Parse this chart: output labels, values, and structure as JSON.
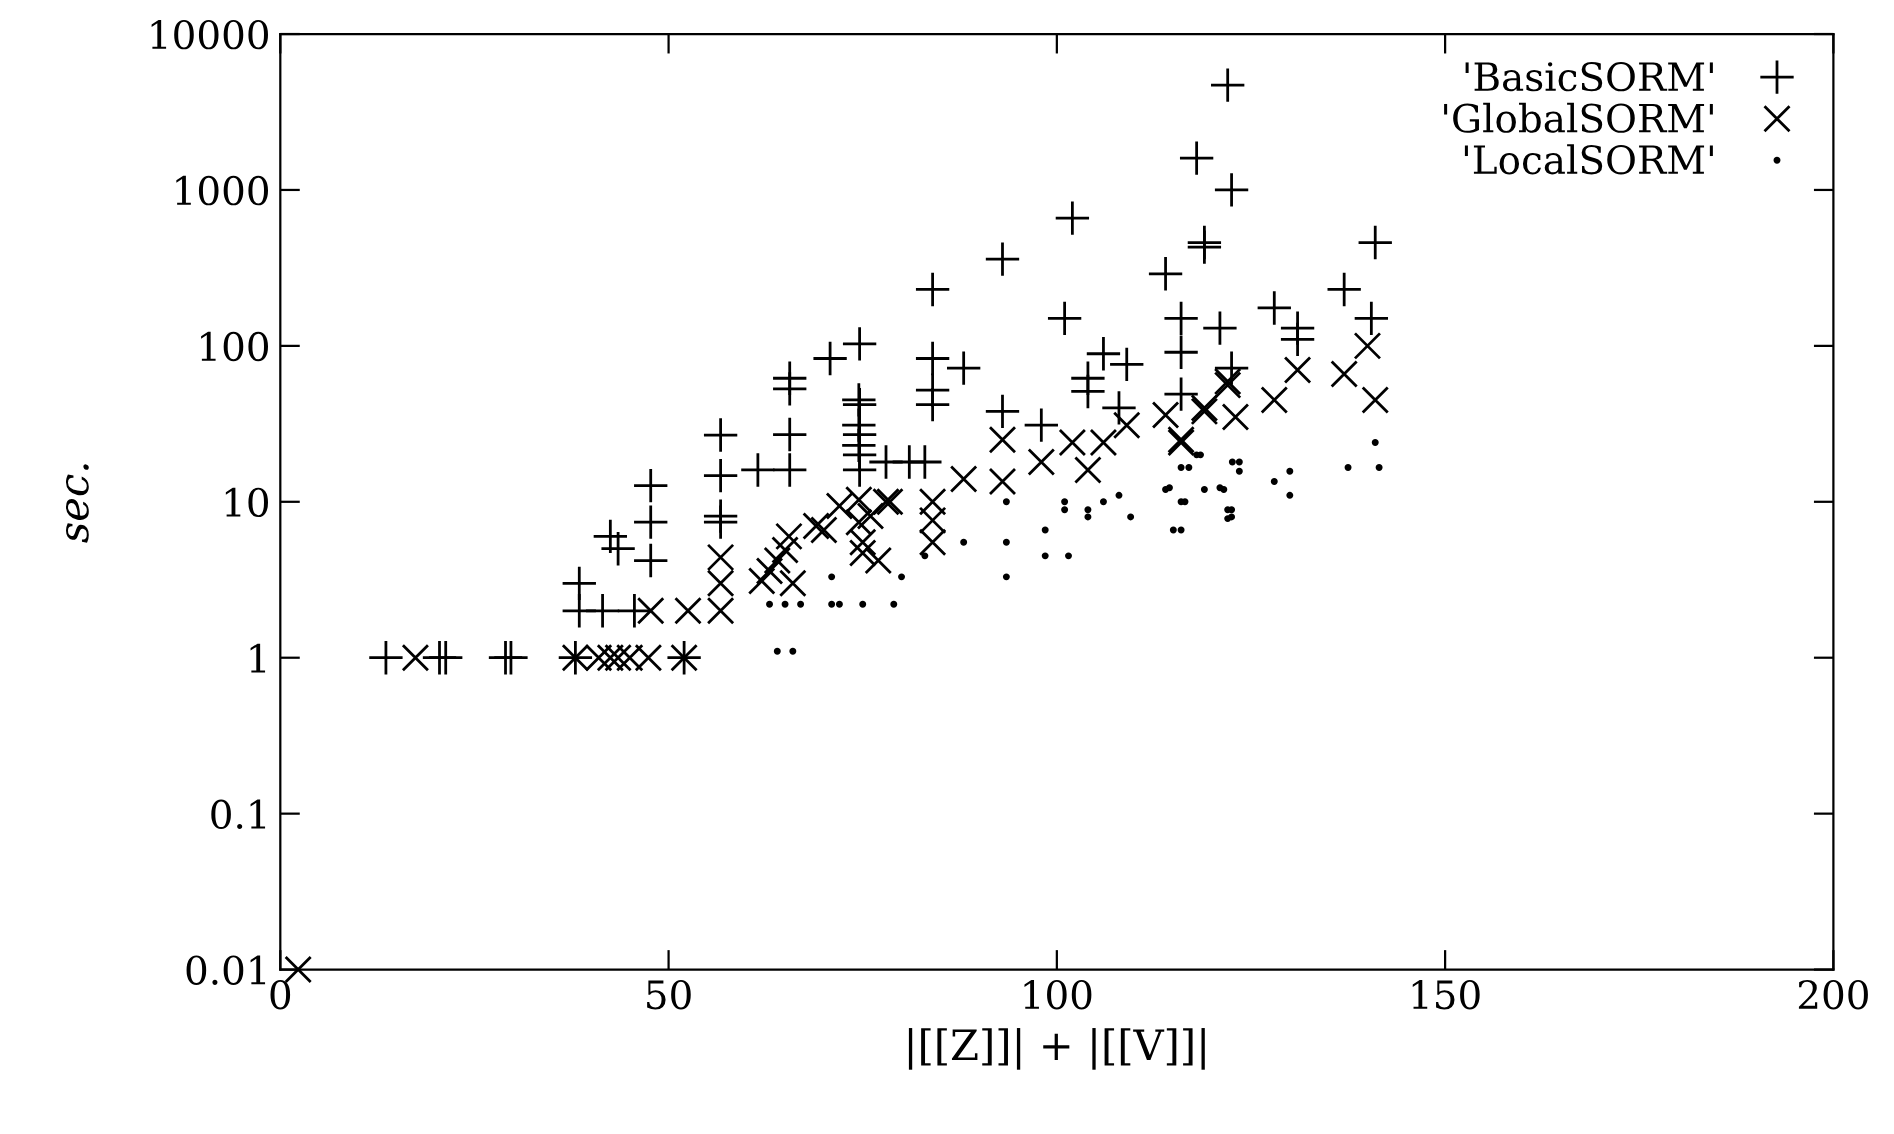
{
  "chart_data": {
    "type": "scatter",
    "xlabel": "|[[Z]]| + |[[V]]|",
    "ylabel": "sec.",
    "log": "y",
    "xlim": [
      0,
      200
    ],
    "xticks": [
      0,
      50,
      100,
      150,
      200
    ],
    "ylim": [
      0.01,
      10000
    ],
    "yticks": [
      0.01,
      0.1,
      1,
      10,
      100,
      1000,
      10000
    ],
    "grid": false,
    "legend": "top right",
    "series": [
      {
        "name": "'BasicSORM'",
        "color": "#000000",
        "marker": "plus",
        "x": [
          13.6,
          20.5,
          21.3,
          29,
          29.7,
          38,
          52,
          38.5,
          41.5,
          45.6,
          38.5,
          47.7,
          47.7,
          47.7,
          42.5,
          43.5,
          56.7,
          56.7,
          56.7,
          56.7,
          61.5,
          65.6,
          65.6,
          65.6,
          65.6,
          70.8,
          74.6,
          74.6,
          74.6,
          74.6,
          74.6,
          84,
          93,
          102,
          119,
          114,
          84,
          88,
          101,
          116,
          116,
          121,
          84,
          84,
          93,
          98,
          106,
          104,
          104,
          109,
          108,
          116,
          74.5,
          74.5,
          74.5,
          78,
          81,
          83,
          122,
          118,
          122.5,
          119,
          141,
          137,
          140.5,
          128,
          131,
          131,
          122.5
        ],
        "values": [
          1,
          1,
          1,
          1,
          1,
          1,
          1,
          2,
          2,
          2,
          3,
          4.2,
          7.4,
          12.7,
          6,
          5,
          26.8,
          14.7,
          8.1,
          7.4,
          16,
          62,
          53,
          27,
          16,
          83,
          103,
          42,
          27,
          20,
          16,
          230,
          360,
          660,
          460,
          290,
          83,
          72,
          150,
          150,
          91,
          130,
          52,
          42,
          38,
          31,
          89,
          62,
          51,
          76,
          40,
          49,
          45,
          31,
          23,
          18,
          18,
          18,
          4700,
          1600,
          1000,
          430,
          460,
          230,
          150,
          175,
          130,
          110,
          72
        ]
      },
      {
        "name": "'GlobalSORM'",
        "color": "#000000",
        "marker": "cross",
        "x": [
          2.3,
          17.4,
          38,
          41,
          42.5,
          43.5,
          45,
          47.4,
          52,
          47.7,
          52.5,
          56.7,
          56.7,
          56.7,
          62,
          63,
          64,
          65,
          65.5,
          66,
          69,
          72,
          74.5,
          76,
          78,
          75,
          70,
          74.5,
          77,
          75,
          84,
          84,
          84,
          78.5,
          88,
          93,
          93,
          98,
          102,
          104,
          106,
          109,
          114,
          116,
          119,
          122,
          140,
          137,
          141,
          128,
          131,
          122,
          123,
          119,
          116
        ],
        "values": [
          0.01,
          1,
          1,
          1,
          1,
          1,
          1,
          1,
          1,
          2,
          2,
          2,
          3,
          4.4,
          3.1,
          3.6,
          4.2,
          4.9,
          6,
          3,
          7,
          9.4,
          10.3,
          8.1,
          10,
          4.7,
          6.6,
          7.4,
          4.2,
          5.5,
          10,
          7.6,
          5.5,
          10,
          14,
          25,
          13.5,
          18,
          24,
          16,
          24,
          31,
          36,
          24,
          38,
          56,
          100,
          66,
          45,
          45,
          70,
          59,
          35,
          40,
          25
        ]
      },
      {
        "name": "'LocalSORM'",
        "color": "#000000",
        "marker": "point",
        "x": [
          63,
          65,
          67,
          71,
          72,
          75,
          79,
          64,
          66,
          71,
          80,
          83,
          88,
          93.5,
          93.5,
          93.5,
          98.5,
          98.5,
          101.5,
          101,
          101,
          104,
          104,
          106,
          108,
          109.5,
          114.5,
          116.5,
          116,
          117,
          118.5,
          121,
          122.5,
          122.5,
          122.6,
          141,
          137.5,
          141.5,
          128,
          130,
          130,
          123.5,
          123.5,
          122,
          122,
          116,
          114,
          119,
          121.5,
          116,
          115,
          118
        ],
        "values": [
          2.2,
          2.2,
          2.2,
          2.2,
          2.2,
          2.2,
          2.2,
          1.1,
          1.1,
          3.3,
          3.3,
          4.5,
          5.5,
          10,
          5.5,
          3.3,
          6.6,
          4.5,
          4.5,
          8.9,
          10,
          8.9,
          8,
          10,
          11,
          8,
          12.3,
          10,
          6.6,
          16.6,
          20,
          12.3,
          8.9,
          8,
          18,
          24,
          16.6,
          16.6,
          13.5,
          15.7,
          11,
          18,
          15.7,
          8.9,
          7.8,
          16.6,
          12,
          12,
          12,
          10,
          6.6,
          20
        ]
      }
    ]
  }
}
